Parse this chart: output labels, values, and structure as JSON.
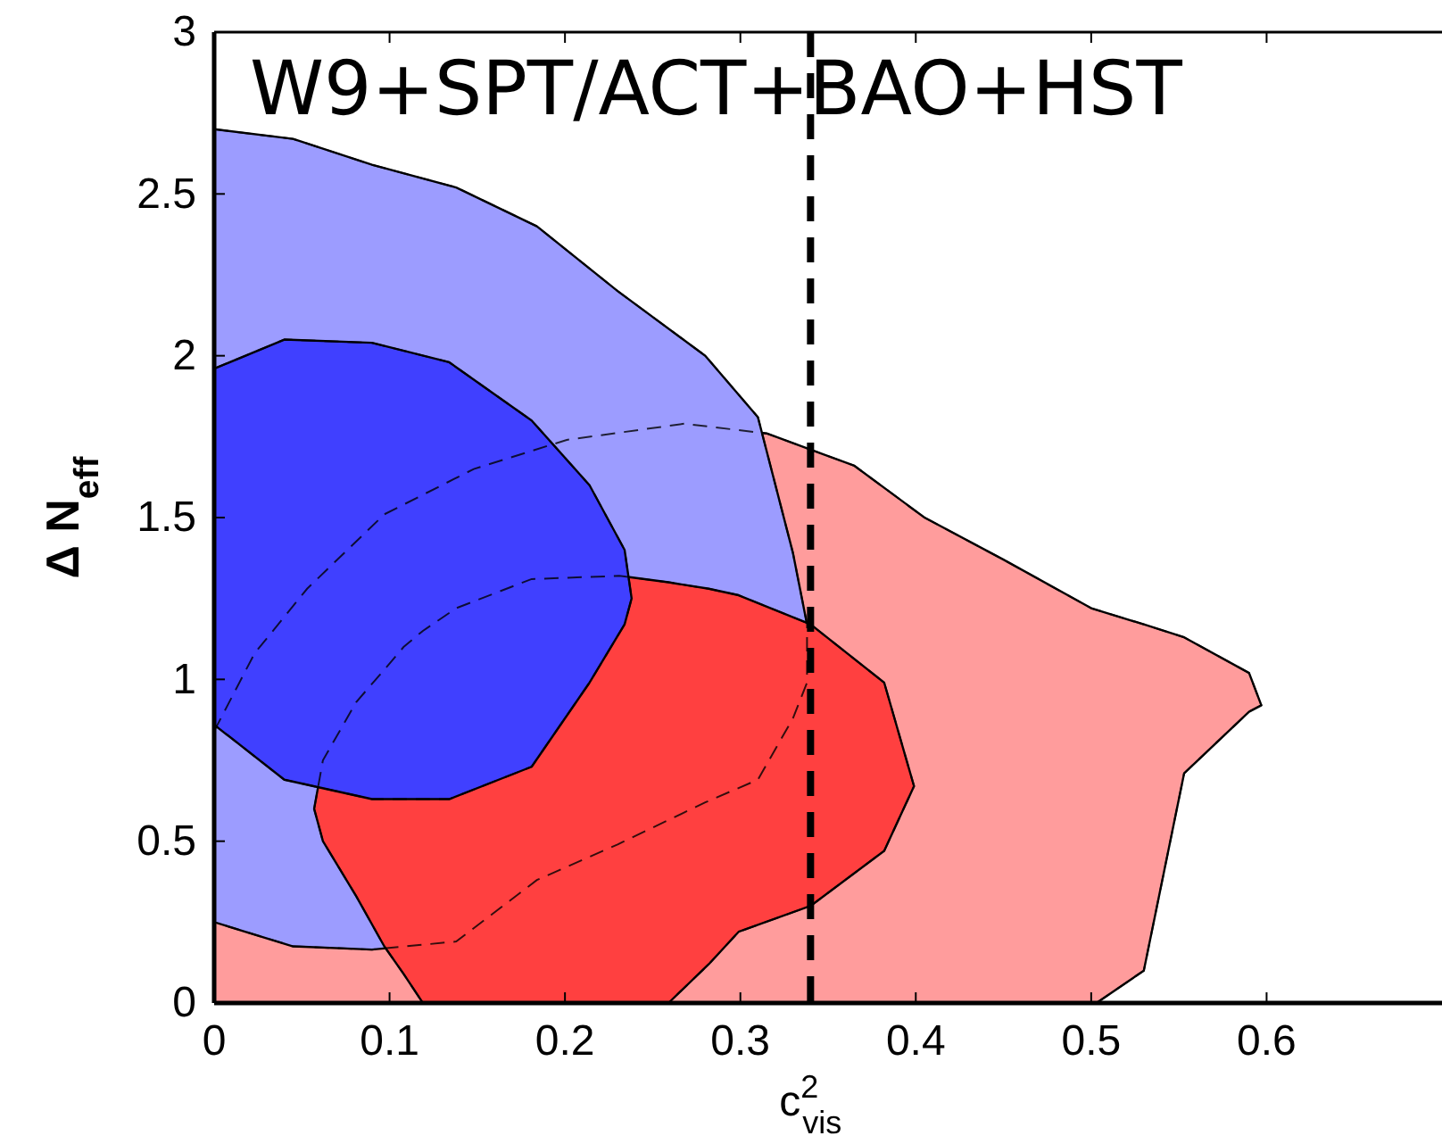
{
  "chart_data": {
    "type": "area",
    "title": "W9+SPT/ACT+BAO+HST",
    "xlabel": "c$^{2}$$_{vis}$",
    "ylabel": "Δ N$_{eff}$",
    "xlim": [
      0,
      0.7
    ],
    "xticks": [
      0,
      0.1,
      0.2,
      0.3,
      0.4,
      0.5,
      0.6
    ],
    "ylim": [
      0,
      3
    ],
    "yticks": [
      0,
      0.5,
      1,
      1.5,
      2,
      2.5,
      3
    ],
    "series": [
      {
        "type": "area",
        "color": "#ff9c9c",
        "x": [
          0,
          0.023,
          0.053,
          0.097,
          0.148,
          0.201,
          0.268,
          0.315,
          0.365,
          0.405,
          0.45,
          0.5,
          0.53,
          0.553,
          0.59,
          0.597,
          0.59,
          0.553,
          0.53,
          0.503,
          0
        ],
        "values": [
          0.84,
          1.08,
          1.28,
          1.51,
          1.65,
          1.74,
          1.79,
          1.76,
          1.66,
          1.5,
          1.37,
          1.22,
          1.17,
          1.13,
          1.02,
          0.92,
          0.9,
          0.71,
          0.1,
          0,
          0
        ]
      },
      {
        "type": "area",
        "color": "#9c9cff",
        "x": [
          0,
          0.045,
          0.09,
          0.138,
          0.184,
          0.23,
          0.28,
          0.31,
          0.33,
          0.338,
          0.338,
          0.33,
          0.31,
          0.28,
          0.23,
          0.184,
          0.138,
          0.09,
          0.045,
          0
        ],
        "values": [
          2.7,
          2.67,
          2.59,
          2.52,
          2.4,
          2.2,
          2,
          1.81,
          1.39,
          1.17,
          0.99,
          0.88,
          0.69,
          0.62,
          0.49,
          0.38,
          0.19,
          0.165,
          0.175,
          0.25
        ]
      },
      {
        "type": "area",
        "color": "#ff4040",
        "x": [
          0.057,
          0.062,
          0.081,
          0.097,
          0.108,
          0.119,
          0.138,
          0.181,
          0.231,
          0.259,
          0.282,
          0.299,
          0.34,
          0.382,
          0.399,
          0.382,
          0.34,
          0.299,
          0.282,
          0.259,
          0.119,
          0.108,
          0.097,
          0.081,
          0.062
        ],
        "values": [
          0.6,
          0.75,
          0.93,
          1.03,
          1.1,
          1.15,
          1.22,
          1.31,
          1.32,
          1.3,
          1.28,
          1.26,
          1.17,
          0.99,
          0.67,
          0.47,
          0.3,
          0.22,
          0.12,
          0,
          0,
          0.09,
          0.175,
          0.33,
          0.5
        ]
      },
      {
        "type": "area",
        "color": "#4040ff",
        "x": [
          0,
          0.04,
          0.09,
          0.134,
          0.181,
          0.214,
          0.234,
          0.238,
          0.234,
          0.214,
          0.181,
          0.134,
          0.09,
          0.04,
          0
        ],
        "values": [
          1.96,
          2.05,
          2.04,
          1.98,
          1.8,
          1.6,
          1.4,
          1.25,
          1.17,
          0.99,
          0.73,
          0.63,
          0.63,
          0.69,
          0.86
        ]
      }
    ],
    "ref_lines": [
      {
        "axis": "x",
        "value": 0.34,
        "line_style": "dashed",
        "color": "#000000"
      }
    ]
  }
}
